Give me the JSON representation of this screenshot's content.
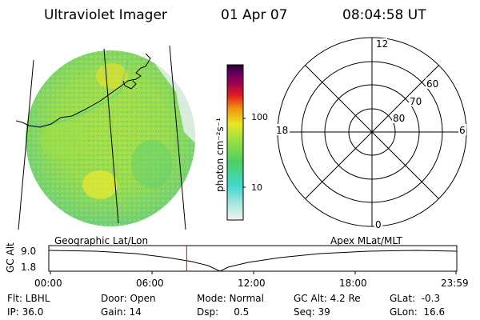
{
  "header": {
    "instrument": "Ultraviolet Imager",
    "date": "01 Apr 07",
    "time": "08:04:58 UT"
  },
  "colorbar": {
    "unit_label": "photon cm⁻²s⁻¹",
    "ticks": [
      "100",
      "10"
    ],
    "colors": [
      "#f0f0f0",
      "#a8e8e0",
      "#40d8d0",
      "#60d060",
      "#a0e040",
      "#e0e020",
      "#f0a010",
      "#e03020",
      "#b00040",
      "#800060",
      "#300040"
    ]
  },
  "polar_plot": {
    "labels": {
      "top": "12",
      "bottom": "0",
      "left": "18",
      "right": "6"
    },
    "lat_labels": [
      "60",
      "70",
      "80"
    ]
  },
  "timeline": {
    "left_label": "Geographic Lat/Lon",
    "right_label": "Apex MLat/MLT",
    "axis_title": "GC Alt",
    "y_ticks": [
      "9.0",
      "1.8"
    ],
    "x_ticks": [
      "00:00",
      "06:00",
      "12:00",
      "18:00",
      "23:59"
    ],
    "current_time_fraction": 0.336
  },
  "footer": {
    "row1": [
      {
        "key": "filter",
        "text": "Flt: LBHL"
      },
      {
        "key": "door",
        "text": "Door: Open"
      },
      {
        "key": "mode",
        "text": "Mode: Normal"
      },
      {
        "key": "gcalt",
        "text": "GC Alt: 4.2 Re"
      },
      {
        "key": "glat",
        "text": "GLat:  -0.3"
      }
    ],
    "row2": [
      {
        "key": "ip",
        "text": "IP: 36.0"
      },
      {
        "key": "gain",
        "text": "Gain: 14"
      },
      {
        "key": "dsp",
        "text": "Dsp:     0.5"
      },
      {
        "key": "seq",
        "text": "Seq: 39"
      },
      {
        "key": "glon",
        "text": "GLon:  16.6"
      }
    ]
  }
}
